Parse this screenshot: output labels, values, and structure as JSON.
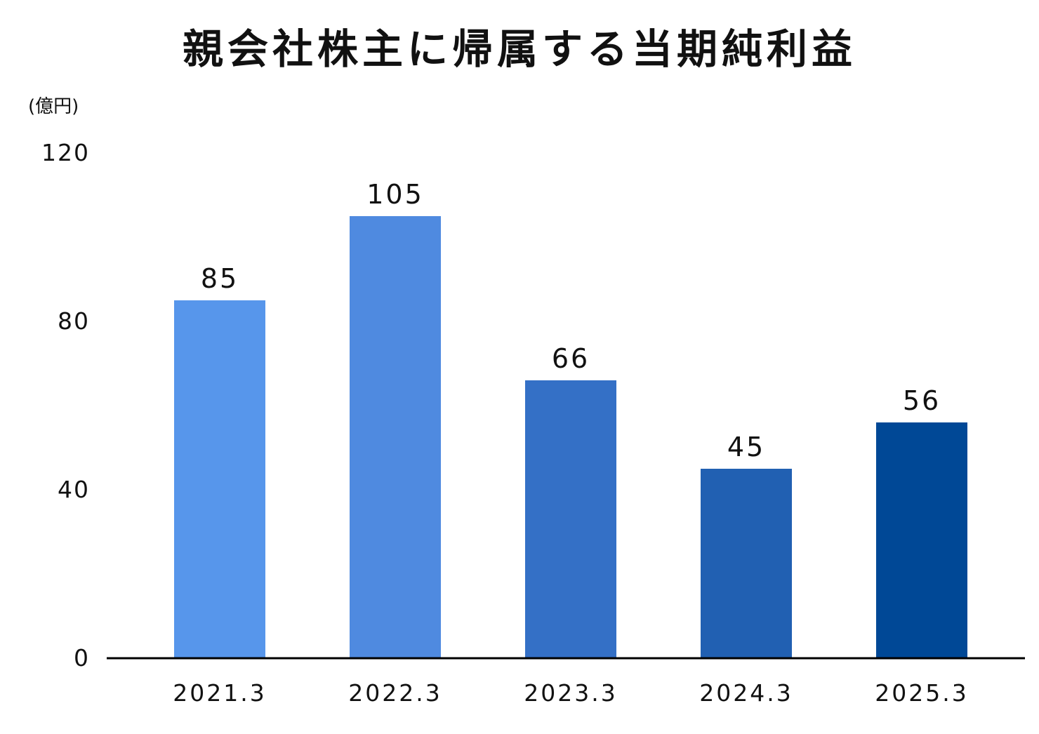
{
  "title": "親会社株主に帰属する当期純利益",
  "unit": "(億円)",
  "chart_data": {
    "type": "bar",
    "title": "親会社株主に帰属する当期純利益",
    "unit": "(億円)",
    "categories": [
      "2021.3",
      "2022.3",
      "2023.3",
      "2024.3",
      "2025.3"
    ],
    "values": [
      85,
      105,
      66,
      45,
      56
    ],
    "data_labels": [
      "85",
      "105",
      "66",
      "45",
      "56"
    ],
    "bar_colors": [
      "#5796eb",
      "#4f8ae0",
      "#3470c6",
      "#2160b2",
      "#004896"
    ],
    "ylim": [
      0,
      120
    ],
    "yticks": [
      0,
      40,
      80,
      120
    ],
    "ytick_labels": [
      "0",
      "40",
      "80",
      "120"
    ],
    "grid": false,
    "legend": "none",
    "axis_color": "#000000"
  }
}
